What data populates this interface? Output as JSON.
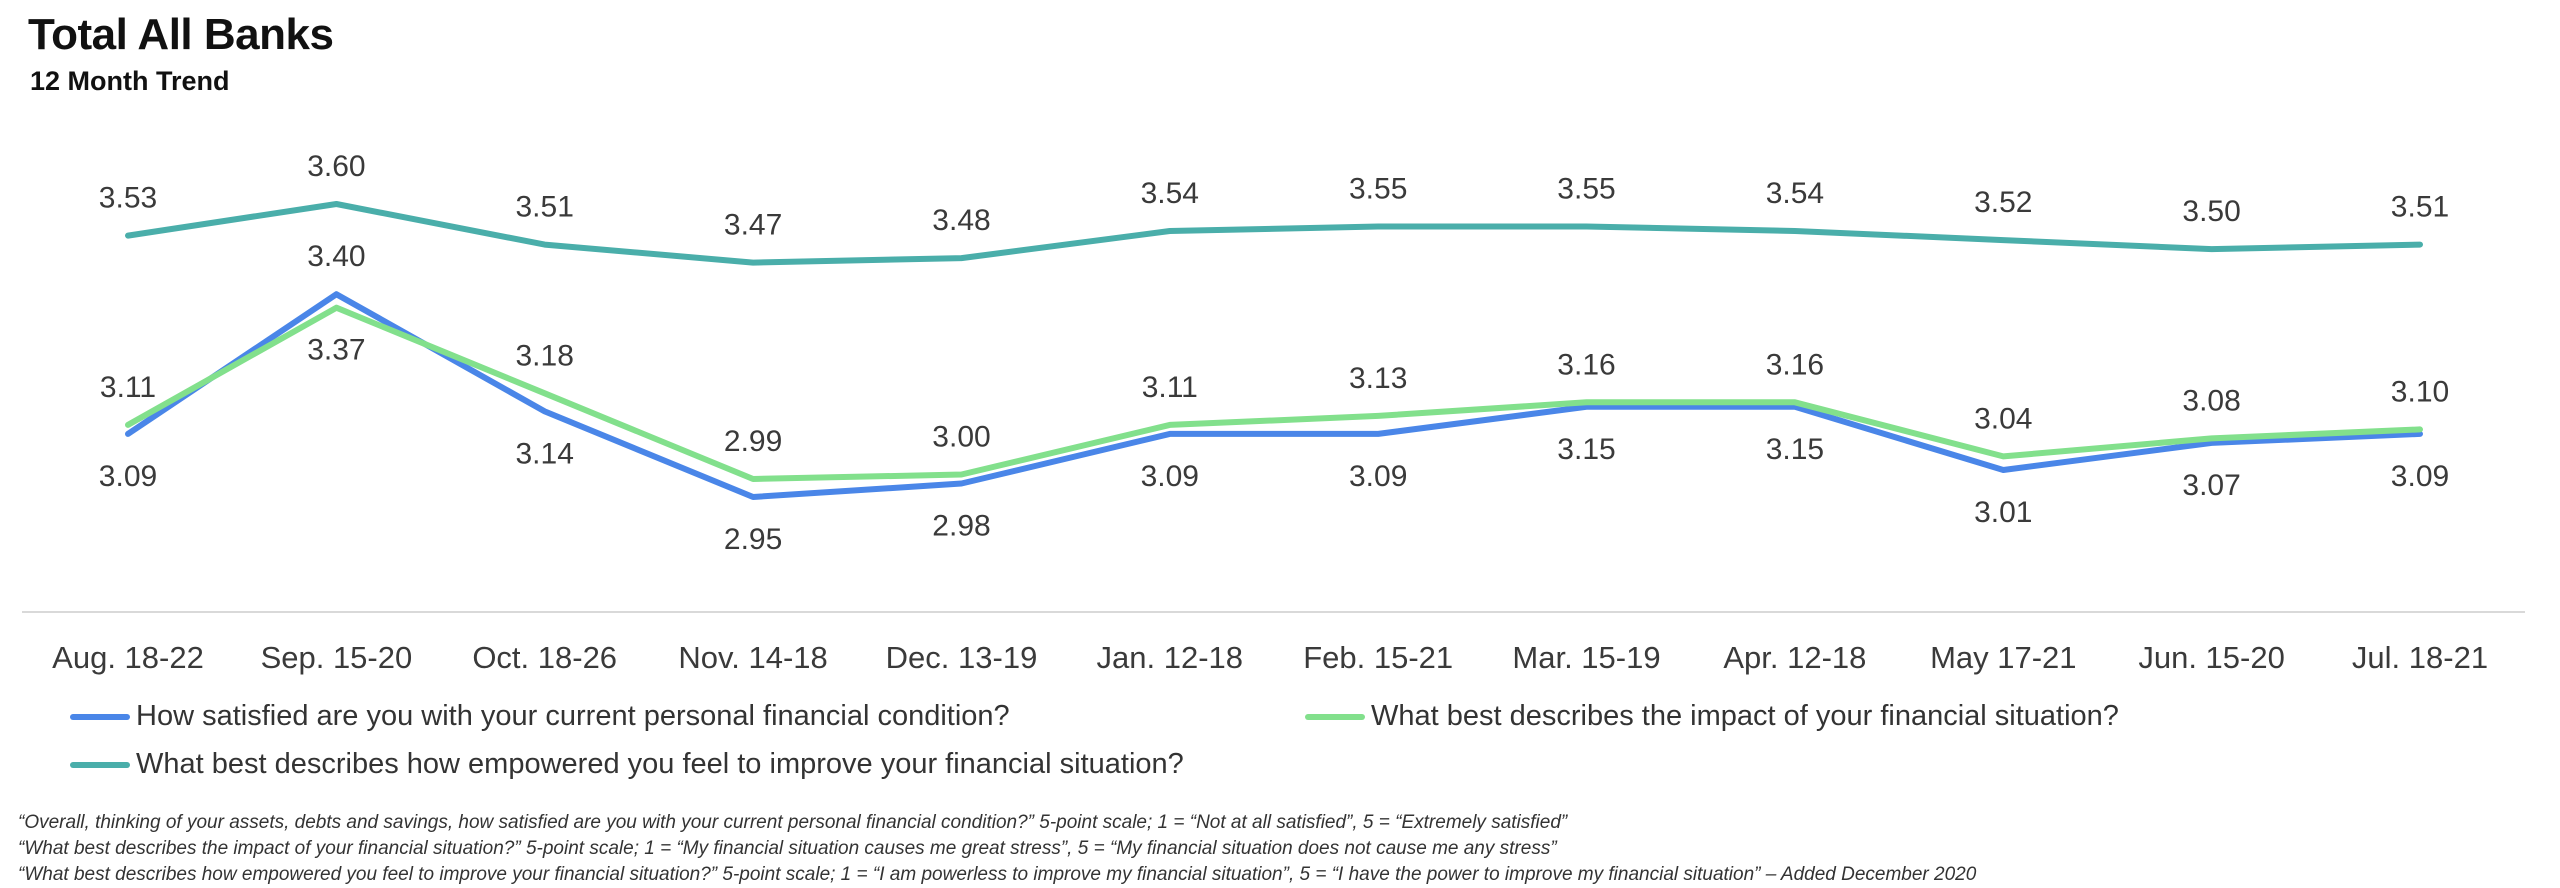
{
  "header": {
    "title": "Total All Banks",
    "subtitle": "12 Month Trend"
  },
  "chart_data": {
    "type": "line",
    "categories": [
      "Aug. 18-22",
      "Sep. 15-20",
      "Oct. 18-26",
      "Nov. 14-18",
      "Dec. 13-19",
      "Jan. 12-18",
      "Feb. 15-21",
      "Mar. 15-19",
      "Apr. 12-18",
      "May 17-21",
      "Jun. 15-20",
      "Jul. 18-21"
    ],
    "ylim": [
      2.85,
      3.7
    ],
    "grid": false,
    "legend_placement": "bottom",
    "series": [
      {
        "key": "satisfied",
        "name": "How satisfied are you with your current personal financial condition?",
        "color": "#4a86e8",
        "values": [
          3.09,
          3.4,
          3.14,
          2.95,
          2.98,
          3.09,
          3.09,
          3.15,
          3.15,
          3.01,
          3.07,
          3.09
        ],
        "labels": [
          "3.09",
          "3.40",
          "3.14",
          "2.95",
          "2.98",
          "3.09",
          "3.09",
          "3.15",
          "3.15",
          "3.01",
          "3.07",
          "3.09"
        ],
        "label_pos": [
          "below",
          "above",
          "below",
          "below",
          "below",
          "below",
          "below",
          "below",
          "below",
          "below",
          "below",
          "below"
        ]
      },
      {
        "key": "impact",
        "name": "What best describes the impact of your financial situation?",
        "color": "#82e08c",
        "values": [
          3.11,
          3.37,
          3.18,
          2.99,
          3.0,
          3.11,
          3.13,
          3.16,
          3.16,
          3.04,
          3.08,
          3.1
        ],
        "labels": [
          "3.11",
          "3.37",
          "3.18",
          "2.99",
          "3.00",
          "3.11",
          "3.13",
          "3.16",
          "3.16",
          "3.04",
          "3.08",
          "3.10"
        ],
        "label_pos": [
          "above",
          "below",
          "above",
          "above",
          "above",
          "above",
          "above",
          "above",
          "above",
          "above",
          "above",
          "above"
        ]
      },
      {
        "key": "empowered",
        "name": "What best describes how empowered you feel to improve your financial situation?",
        "color": "#4aaeaa",
        "values": [
          3.53,
          3.6,
          3.51,
          3.47,
          3.48,
          3.54,
          3.55,
          3.55,
          3.54,
          3.52,
          3.5,
          3.51
        ],
        "labels": [
          "3.53",
          "3.60",
          "3.51",
          "3.47",
          "3.48",
          "3.54",
          "3.55",
          "3.55",
          "3.54",
          "3.52",
          "3.50",
          "3.51"
        ],
        "label_pos": [
          "above",
          "above",
          "above",
          "above",
          "above",
          "above",
          "above",
          "above",
          "above",
          "above",
          "above",
          "above"
        ]
      }
    ]
  },
  "legend": {
    "satisfied": "How satisfied are you with your current personal financial condition?",
    "impact": "What best describes the impact of your financial situation?",
    "empowered": "What best describes how empowered you feel to improve your financial situation?"
  },
  "notes": {
    "note1": "“Overall, thinking of your assets, debts and savings, how satisfied are you with your current personal financial condition?” 5-point scale; 1 = “Not at all satisfied”, 5 = “Extremely satisfied”",
    "note2": "“What best describes the impact of your financial situation?” 5-point scale; 1 = “My financial situation causes me great stress”, 5 = “My financial situation does not cause me any stress”",
    "note3": "“What best describes how empowered you feel to improve your financial situation?” 5-point scale; 1 = “I am powerless to improve my financial situation”, 5 = “I have the power to improve my financial situation” – Added December 2020"
  }
}
